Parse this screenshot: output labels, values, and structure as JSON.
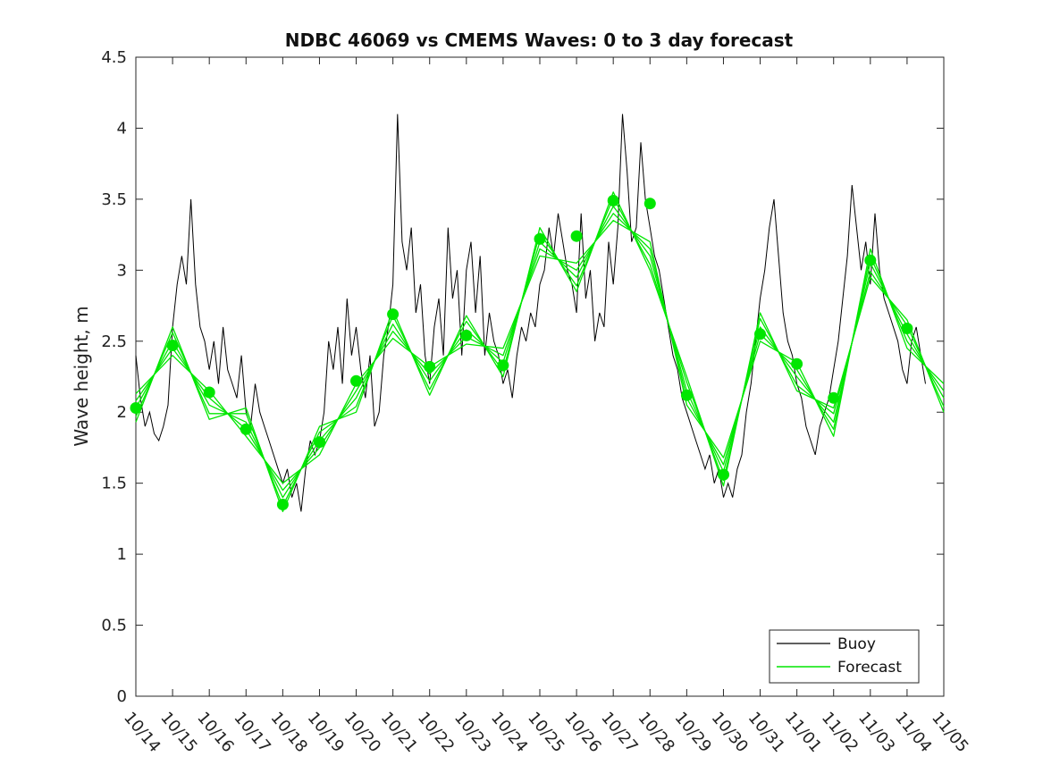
{
  "chart_data": {
    "type": "line",
    "title": "NDBC 46069 vs CMEMS Waves: 0 to 3 day forecast",
    "xlabel": "",
    "ylabel": "Wave height, m",
    "ylim": [
      0,
      4.5
    ],
    "yticks": [
      "0",
      "0.5",
      "1",
      "1.5",
      "2",
      "2.5",
      "3",
      "3.5",
      "4",
      "4.5"
    ],
    "xlim": [
      "10/14",
      "11/05"
    ],
    "xticks": [
      "10/14",
      "10/15",
      "10/16",
      "10/17",
      "10/18",
      "10/19",
      "10/20",
      "10/21",
      "10/22",
      "10/23",
      "10/24",
      "10/25",
      "10/26",
      "10/27",
      "10/28",
      "10/29",
      "10/30",
      "10/31",
      "11/01",
      "11/02",
      "11/03",
      "11/04",
      "11/05"
    ],
    "grid": false,
    "legend_position": "bottom-right",
    "colors": {
      "buoy": "#000000",
      "forecast": "#00e600"
    },
    "series": [
      {
        "name": "Buoy",
        "color": "#000000",
        "x": [
          "10/14 00:00",
          "10/14 03:00",
          "10/14 06:00",
          "10/14 09:00",
          "10/14 12:00",
          "10/14 15:00",
          "10/14 18:00",
          "10/14 21:00",
          "10/15 00:00",
          "10/15 03:00",
          "10/15 06:00",
          "10/15 09:00",
          "10/15 12:00",
          "10/15 15:00",
          "10/15 18:00",
          "10/15 21:00",
          "10/16 00:00",
          "10/16 03:00",
          "10/16 06:00",
          "10/16 09:00",
          "10/16 12:00",
          "10/16 15:00",
          "10/16 18:00",
          "10/16 21:00",
          "10/17 00:00",
          "10/17 03:00",
          "10/17 06:00",
          "10/17 09:00",
          "10/17 12:00",
          "10/17 15:00",
          "10/17 18:00",
          "10/17 21:00",
          "10/18 00:00",
          "10/18 03:00",
          "10/18 06:00",
          "10/18 09:00",
          "10/18 12:00",
          "10/18 15:00",
          "10/18 18:00",
          "10/18 21:00",
          "10/19 00:00",
          "10/19 03:00",
          "10/19 06:00",
          "10/19 09:00",
          "10/19 12:00",
          "10/19 15:00",
          "10/19 18:00",
          "10/19 21:00",
          "10/20 00:00",
          "10/20 03:00",
          "10/20 06:00",
          "10/20 09:00",
          "10/20 12:00",
          "10/20 15:00",
          "10/20 18:00",
          "10/20 21:00",
          "10/21 00:00",
          "10/21 03:00",
          "10/21 06:00",
          "10/21 09:00",
          "10/21 12:00",
          "10/21 15:00",
          "10/21 18:00",
          "10/21 21:00",
          "10/22 00:00",
          "10/22 03:00",
          "10/22 06:00",
          "10/22 09:00",
          "10/22 12:00",
          "10/22 15:00",
          "10/22 18:00",
          "10/22 21:00",
          "10/23 00:00",
          "10/23 03:00",
          "10/23 06:00",
          "10/23 09:00",
          "10/23 12:00",
          "10/23 15:00",
          "10/23 18:00",
          "10/23 21:00",
          "10/24 00:00",
          "10/24 03:00",
          "10/24 06:00",
          "10/24 09:00",
          "10/24 12:00",
          "10/24 15:00",
          "10/24 18:00",
          "10/24 21:00",
          "10/25 00:00",
          "10/25 03:00",
          "10/25 06:00",
          "10/25 09:00",
          "10/25 12:00",
          "10/25 15:00",
          "10/25 18:00",
          "10/25 21:00",
          "10/26 00:00",
          "10/26 03:00",
          "10/26 06:00",
          "10/26 09:00",
          "10/26 12:00",
          "10/26 15:00",
          "10/26 18:00",
          "10/26 21:00",
          "10/27 00:00",
          "10/27 03:00",
          "10/27 06:00",
          "10/27 09:00",
          "10/27 12:00",
          "10/27 15:00",
          "10/27 18:00",
          "10/27 21:00",
          "10/28 00:00",
          "10/28 03:00",
          "10/28 06:00",
          "10/28 09:00",
          "10/28 12:00",
          "10/28 15:00",
          "10/28 18:00",
          "10/28 21:00",
          "10/29 00:00",
          "10/29 03:00",
          "10/29 06:00",
          "10/29 09:00",
          "10/29 12:00",
          "10/29 15:00",
          "10/29 18:00",
          "10/29 21:00",
          "10/30 00:00",
          "10/30 03:00",
          "10/30 06:00",
          "10/30 09:00",
          "10/30 12:00",
          "10/30 15:00",
          "10/30 18:00",
          "10/30 21:00",
          "10/31 00:00",
          "10/31 03:00",
          "10/31 06:00",
          "10/31 09:00",
          "10/31 12:00",
          "10/31 15:00",
          "10/31 18:00",
          "10/31 21:00",
          "11/01 00:00",
          "11/01 03:00",
          "11/01 06:00",
          "11/01 09:00",
          "11/01 12:00",
          "11/01 15:00",
          "11/01 18:00",
          "11/01 21:00",
          "11/02 00:00",
          "11/02 03:00",
          "11/02 06:00",
          "11/02 09:00",
          "11/02 12:00",
          "11/02 15:00",
          "11/02 18:00",
          "11/02 21:00",
          "11/03 00:00",
          "11/03 03:00",
          "11/03 06:00",
          "11/03 09:00",
          "11/03 12:00",
          "11/03 15:00",
          "11/03 18:00",
          "11/03 21:00",
          "11/04 00:00",
          "11/04 03:00",
          "11/04 06:00",
          "11/04 09:00",
          "11/04 12:00"
        ],
        "y": [
          2.4,
          2.1,
          1.9,
          2.0,
          1.85,
          1.8,
          1.9,
          2.05,
          2.6,
          2.9,
          3.1,
          2.9,
          3.5,
          2.9,
          2.6,
          2.5,
          2.3,
          2.5,
          2.2,
          2.6,
          2.3,
          2.2,
          2.1,
          2.4,
          2.0,
          1.9,
          2.2,
          2.0,
          1.9,
          1.8,
          1.7,
          1.6,
          1.5,
          1.6,
          1.4,
          1.5,
          1.3,
          1.6,
          1.8,
          1.7,
          1.8,
          2.0,
          2.5,
          2.3,
          2.6,
          2.2,
          2.8,
          2.4,
          2.6,
          2.3,
          2.1,
          2.4,
          1.9,
          2.0,
          2.4,
          2.6,
          2.9,
          4.1,
          3.2,
          3.0,
          3.3,
          2.7,
          2.9,
          2.4,
          2.2,
          2.6,
          2.8,
          2.4,
          3.3,
          2.8,
          3.0,
          2.4,
          3.0,
          3.2,
          2.7,
          3.1,
          2.4,
          2.7,
          2.5,
          2.4,
          2.2,
          2.3,
          2.1,
          2.4,
          2.6,
          2.5,
          2.7,
          2.6,
          2.9,
          3.0,
          3.3,
          3.1,
          3.4,
          3.2,
          3.0,
          2.9,
          2.7,
          3.4,
          2.8,
          3.0,
          2.5,
          2.7,
          2.6,
          3.2,
          2.9,
          3.3,
          4.1,
          3.7,
          3.2,
          3.3,
          3.9,
          3.5,
          3.3,
          3.1,
          3.0,
          2.8,
          2.6,
          2.4,
          2.3,
          2.1,
          2.0,
          1.9,
          1.8,
          1.7,
          1.6,
          1.7,
          1.5,
          1.6,
          1.4,
          1.5,
          1.4,
          1.6,
          1.7,
          2.0,
          2.2,
          2.5,
          2.8,
          3.0,
          3.3,
          3.5,
          3.1,
          2.7,
          2.5,
          2.4,
          2.2,
          2.1,
          1.9,
          1.8,
          1.7,
          1.9,
          2.0,
          2.1,
          2.3,
          2.5,
          2.8,
          3.1,
          3.6,
          3.3,
          3.0,
          3.2,
          2.9,
          3.4,
          3.0,
          2.8,
          2.7,
          2.6,
          2.5,
          2.3,
          2.2,
          2.5,
          2.6,
          2.4,
          2.2
        ]
      },
      {
        "name": "Forecast",
        "color": "#00e600",
        "x": [
          "10/14",
          "10/15",
          "10/16",
          "10/17",
          "10/18",
          "10/19",
          "10/20",
          "10/21",
          "10/22",
          "10/23",
          "10/24",
          "10/25",
          "10/26",
          "10/27",
          "10/28",
          "10/29",
          "10/30",
          "10/31",
          "11/01",
          "11/02",
          "11/03",
          "11/04",
          "11/05"
        ],
        "y": [
          2.03,
          2.5,
          2.05,
          1.93,
          1.4,
          1.8,
          2.1,
          2.62,
          2.22,
          2.58,
          2.35,
          3.2,
          2.95,
          3.45,
          3.1,
          2.15,
          1.58,
          2.6,
          2.25,
          1.93,
          3.05,
          2.55,
          2.1
        ],
        "markers": {
          "x": [
            "10/14",
            "10/15",
            "10/16",
            "10/17",
            "10/18",
            "10/19",
            "10/20",
            "10/21",
            "10/22",
            "10/23",
            "10/24",
            "10/25",
            "10/26",
            "10/27",
            "10/28",
            "10/29",
            "10/30",
            "10/31",
            "11/01",
            "11/02",
            "11/03",
            "11/04"
          ],
          "y": [
            2.03,
            2.47,
            2.14,
            1.88,
            1.35,
            1.79,
            2.22,
            2.69,
            2.32,
            2.54,
            2.33,
            3.22,
            3.24,
            3.49,
            3.47,
            2.12,
            1.56,
            2.55,
            2.34,
            2.1,
            3.07,
            2.59
          ]
        }
      }
    ]
  }
}
